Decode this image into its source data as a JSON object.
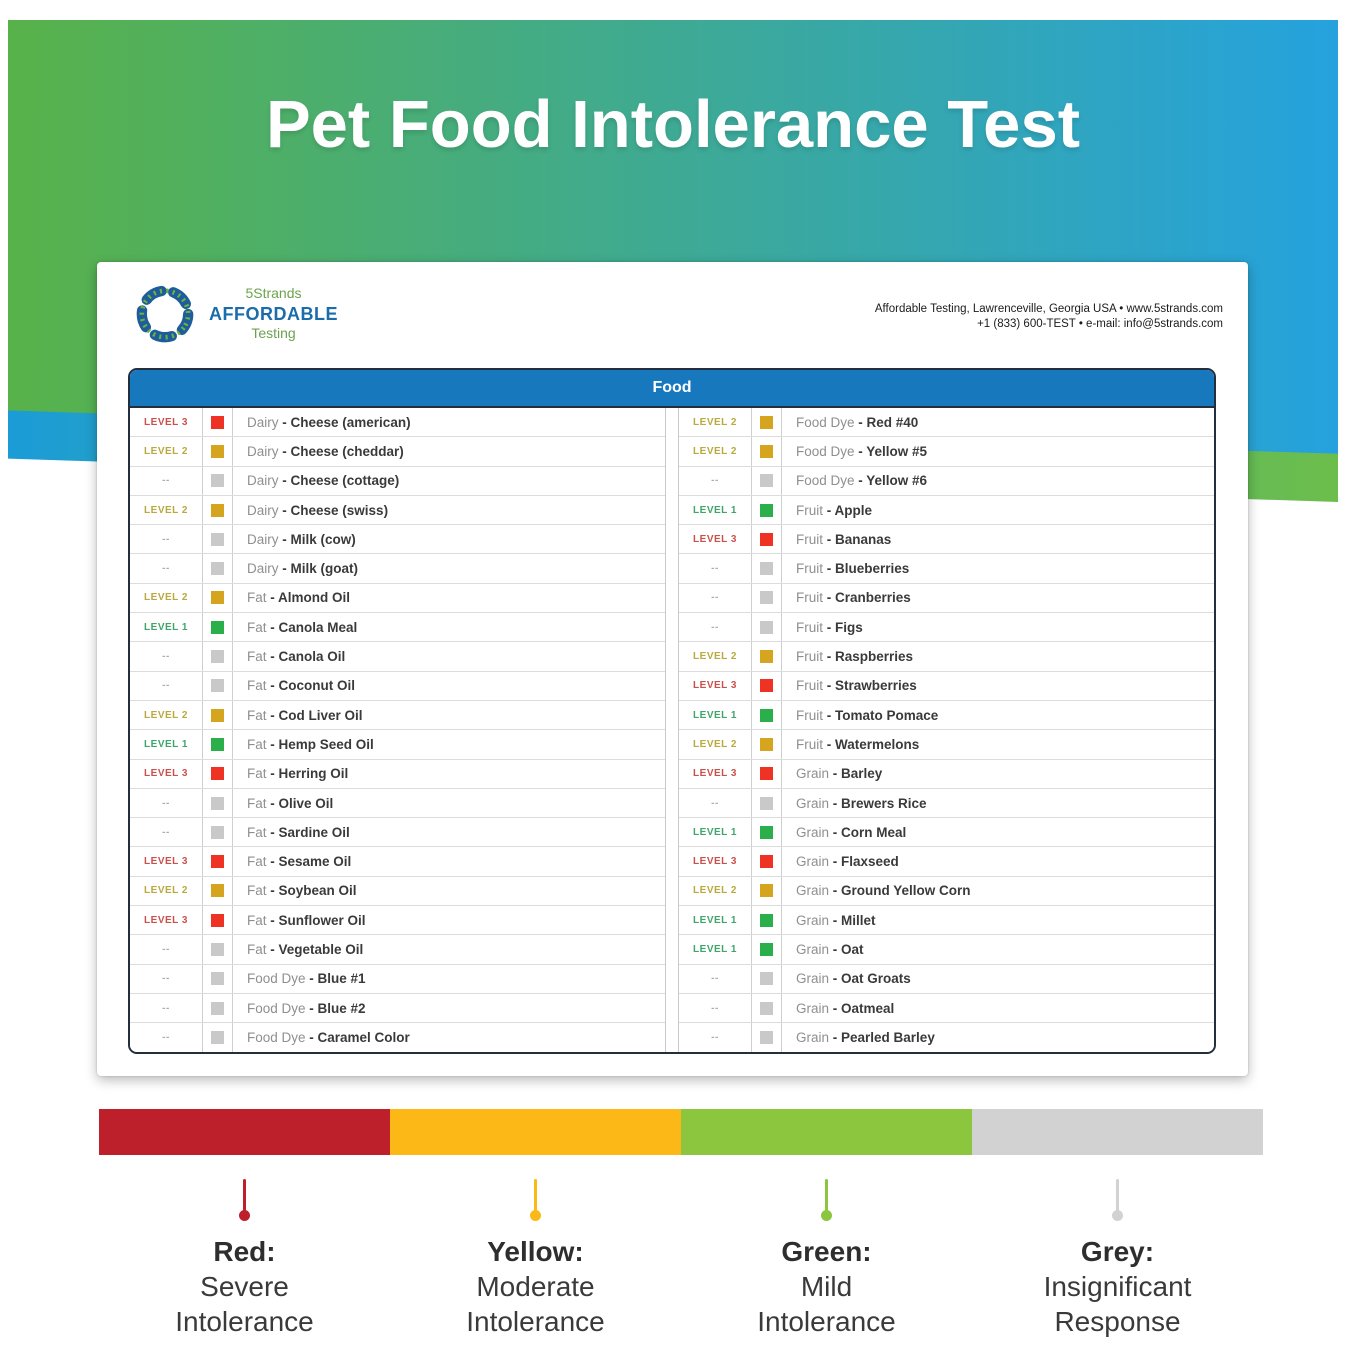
{
  "page": {
    "title": "Pet Food Intolerance Test"
  },
  "brand": {
    "name_top": "5Strands",
    "name_main": "AFFORDABLE",
    "name_sub": "Testing",
    "contact_line1": "Affordable Testing, Lawrenceville, Georgia USA • www.5strands.com",
    "contact_line2": "+1 (833) 600-TEST • e-mail: info@5strands.com"
  },
  "table": {
    "title": "Food",
    "separator": " - ",
    "columns": {
      "left": [
        {
          "level": "LEVEL 3",
          "severity": "red",
          "category": "Dairy",
          "item": "Cheese (american)"
        },
        {
          "level": "LEVEL 2",
          "severity": "yellow",
          "category": "Dairy",
          "item": "Cheese (cheddar)"
        },
        {
          "level": "--",
          "severity": "grey",
          "category": "Dairy",
          "item": "Cheese (cottage)"
        },
        {
          "level": "LEVEL 2",
          "severity": "yellow",
          "category": "Dairy",
          "item": "Cheese (swiss)"
        },
        {
          "level": "--",
          "severity": "grey",
          "category": "Dairy",
          "item": "Milk (cow)"
        },
        {
          "level": "--",
          "severity": "grey",
          "category": "Dairy",
          "item": "Milk (goat)"
        },
        {
          "level": "LEVEL 2",
          "severity": "yellow",
          "category": "Fat",
          "item": "Almond Oil"
        },
        {
          "level": "LEVEL 1",
          "severity": "green",
          "category": "Fat",
          "item": "Canola Meal"
        },
        {
          "level": "--",
          "severity": "grey",
          "category": "Fat",
          "item": "Canola Oil"
        },
        {
          "level": "--",
          "severity": "grey",
          "category": "Fat",
          "item": "Coconut Oil"
        },
        {
          "level": "LEVEL 2",
          "severity": "yellow",
          "category": "Fat",
          "item": "Cod Liver Oil"
        },
        {
          "level": "LEVEL 1",
          "severity": "green",
          "category": "Fat",
          "item": "Hemp Seed Oil"
        },
        {
          "level": "LEVEL 3",
          "severity": "red",
          "category": "Fat",
          "item": "Herring Oil"
        },
        {
          "level": "--",
          "severity": "grey",
          "category": "Fat",
          "item": "Olive Oil"
        },
        {
          "level": "--",
          "severity": "grey",
          "category": "Fat",
          "item": "Sardine Oil"
        },
        {
          "level": "LEVEL 3",
          "severity": "red",
          "category": "Fat",
          "item": "Sesame Oil"
        },
        {
          "level": "LEVEL 2",
          "severity": "yellow",
          "category": "Fat",
          "item": "Soybean Oil"
        },
        {
          "level": "LEVEL 3",
          "severity": "red",
          "category": "Fat",
          "item": "Sunflower Oil"
        },
        {
          "level": "--",
          "severity": "grey",
          "category": "Fat",
          "item": "Vegetable Oil"
        },
        {
          "level": "--",
          "severity": "grey",
          "category": "Food Dye",
          "item": "Blue #1"
        },
        {
          "level": "--",
          "severity": "grey",
          "category": "Food Dye",
          "item": "Blue #2"
        },
        {
          "level": "--",
          "severity": "grey",
          "category": "Food Dye",
          "item": "Caramel Color"
        }
      ],
      "right": [
        {
          "level": "LEVEL 2",
          "severity": "yellow",
          "category": "Food Dye",
          "item": "Red #40"
        },
        {
          "level": "LEVEL 2",
          "severity": "yellow",
          "category": "Food Dye",
          "item": "Yellow #5"
        },
        {
          "level": "--",
          "severity": "grey",
          "category": "Food Dye",
          "item": "Yellow #6"
        },
        {
          "level": "LEVEL 1",
          "severity": "green",
          "category": "Fruit",
          "item": "Apple"
        },
        {
          "level": "LEVEL 3",
          "severity": "red",
          "category": "Fruit",
          "item": "Bananas"
        },
        {
          "level": "--",
          "severity": "grey",
          "category": "Fruit",
          "item": "Blueberries"
        },
        {
          "level": "--",
          "severity": "grey",
          "category": "Fruit",
          "item": "Cranberries"
        },
        {
          "level": "--",
          "severity": "grey",
          "category": "Fruit",
          "item": "Figs"
        },
        {
          "level": "LEVEL 2",
          "severity": "yellow",
          "category": "Fruit",
          "item": "Raspberries"
        },
        {
          "level": "LEVEL 3",
          "severity": "red",
          "category": "Fruit",
          "item": "Strawberries"
        },
        {
          "level": "LEVEL 1",
          "severity": "green",
          "category": "Fruit",
          "item": "Tomato Pomace"
        },
        {
          "level": "LEVEL 2",
          "severity": "yellow",
          "category": "Fruit",
          "item": "Watermelons"
        },
        {
          "level": "LEVEL 3",
          "severity": "red",
          "category": "Grain",
          "item": "Barley"
        },
        {
          "level": "--",
          "severity": "grey",
          "category": "Grain",
          "item": "Brewers Rice"
        },
        {
          "level": "LEVEL 1",
          "severity": "green",
          "category": "Grain",
          "item": "Corn Meal"
        },
        {
          "level": "LEVEL 3",
          "severity": "red",
          "category": "Grain",
          "item": "Flaxseed"
        },
        {
          "level": "LEVEL 2",
          "severity": "yellow",
          "category": "Grain",
          "item": "Ground Yellow Corn"
        },
        {
          "level": "LEVEL 1",
          "severity": "green",
          "category": "Grain",
          "item": "Millet"
        },
        {
          "level": "LEVEL 1",
          "severity": "green",
          "category": "Grain",
          "item": "Oat"
        },
        {
          "level": "--",
          "severity": "grey",
          "category": "Grain",
          "item": "Oat Groats"
        },
        {
          "level": "--",
          "severity": "grey",
          "category": "Grain",
          "item": "Oatmeal"
        },
        {
          "level": "--",
          "severity": "grey",
          "category": "Grain",
          "item": "Pearled Barley"
        }
      ]
    }
  },
  "legend": {
    "segments": [
      {
        "id": "red",
        "color": "#BE202B",
        "title": "Red:",
        "line1": "Severe",
        "line2": "Intolerance"
      },
      {
        "id": "yellow",
        "color": "#FBB817",
        "title": "Yellow:",
        "line1": "Moderate",
        "line2": "Intolerance"
      },
      {
        "id": "green",
        "color": "#8CC63F",
        "title": "Green:",
        "line1": "Mild",
        "line2": "Intolerance"
      },
      {
        "id": "grey",
        "color": "#D2D2D2",
        "title": "Grey:",
        "line1": "Insignificant",
        "line2": "Response"
      }
    ]
  },
  "colors": {
    "banner_gradient_start": "#58B24A",
    "banner_gradient_end": "#25A2DE",
    "banner_accent_start": "#1B9CD6",
    "banner_accent_end": "#6CBE4B",
    "table_header_bg": "#1878BE",
    "table_border": "#232F3E",
    "severity": {
      "red": {
        "text": "#C9504C",
        "swatch": "#EE3224"
      },
      "yellow": {
        "text": "#B9A93F",
        "swatch": "#D6A520"
      },
      "green": {
        "text": "#3FA56B",
        "swatch": "#2BAF4A"
      },
      "grey": {
        "text": "#ADADAD",
        "swatch": "#C9C9C9"
      }
    }
  }
}
